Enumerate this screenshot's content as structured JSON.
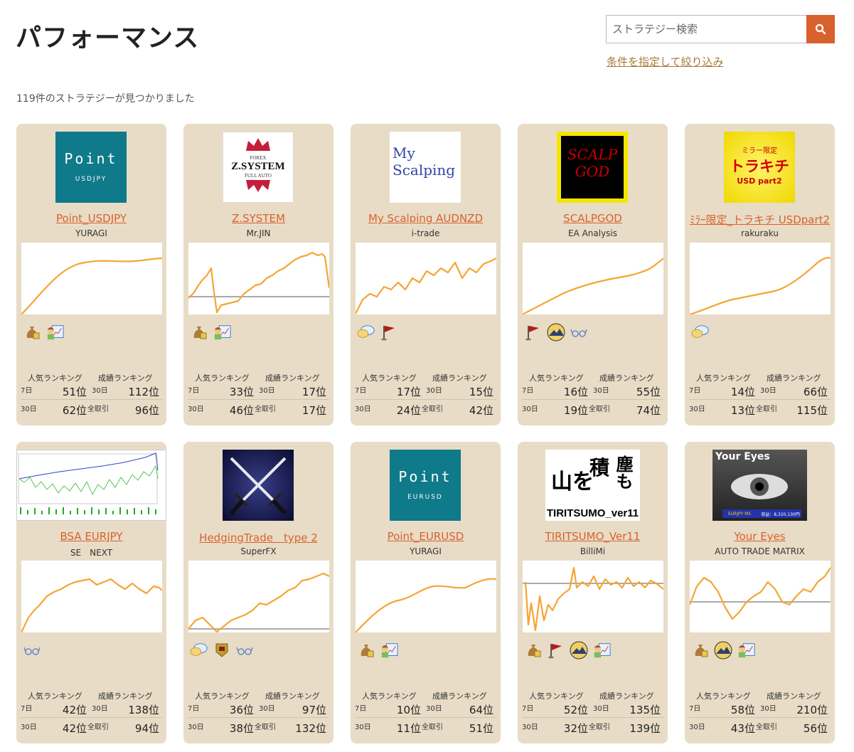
{
  "page": {
    "title": "パフォーマンス",
    "search_placeholder": "ストラテジー検索",
    "filter_link": "条件を指定して絞り込み",
    "result_count": "119件のストラテジーが見つかりました"
  },
  "labels": {
    "popular": "人気ランキング",
    "performance": "成績ランキング",
    "d7": "7日",
    "d30": "30日",
    "d30b": "30日",
    "all": "全取引"
  },
  "thumbs": {
    "t0": {
      "line1": "Point",
      "line2": "USDJPY"
    },
    "t1": {
      "l1": "FOREX",
      "l2": "Z.SYSTEM",
      "l3": "FULL AUTO"
    },
    "t2": {
      "l1": "My",
      "l2": "Scalping"
    },
    "t3": {
      "l1": "SCALP",
      "l2": "GOD"
    },
    "t4": {
      "l1": "ミラー限定",
      "l2": "トラキチ",
      "l3": "USD part2"
    },
    "t7": {
      "line1": "Point",
      "line2": "EURUSD"
    },
    "t8": {
      "l1": "山を",
      "l2": "積",
      "l3": "塵も",
      "l4": "TIRITSUMO_ver11"
    },
    "t9": {
      "l1": "Your Eyes",
      "l2": "EURJPY M5",
      "l3": "収益：8,320,130円"
    }
  },
  "cards": [
    {
      "title": "Point_USDJPY",
      "author": "YURAGI",
      "p7": "51位",
      "p30": "62位",
      "s30": "112位",
      "sall": "96位"
    },
    {
      "title": "Z.SYSTEM",
      "author": "Mr.JIN",
      "p7": "33位",
      "p30": "46位",
      "s30": "17位",
      "sall": "17位"
    },
    {
      "title": "My Scalping AUDNZD",
      "author": "i-trade",
      "p7": "17位",
      "p30": "24位",
      "s30": "15位",
      "sall": "42位"
    },
    {
      "title": "SCALPGOD",
      "author": "EA Analysis",
      "p7": "16位",
      "p30": "19位",
      "s30": "55位",
      "sall": "74位"
    },
    {
      "title": "ﾐﾗｰ限定_トラキチ USDpart2",
      "author": "rakuraku",
      "p7": "14位",
      "p30": "13位",
      "s30": "66位",
      "sall": "115位"
    },
    {
      "title": "BSA EURJPY",
      "author": "SE　NEXT",
      "p7": "42位",
      "p30": "42位",
      "s30": "138位",
      "sall": "94位"
    },
    {
      "title": "HedgingTrade　type 2",
      "author": "SuperFX",
      "p7": "36位",
      "p30": "38位",
      "s30": "97位",
      "sall": "132位"
    },
    {
      "title": "Point_EURUSD",
      "author": "YURAGI",
      "p7": "10位",
      "p30": "11位",
      "s30": "64位",
      "sall": "51位"
    },
    {
      "title": "TIRITSUMO_Ver11",
      "author": "BilliMi",
      "p7": "52位",
      "p30": "32位",
      "s30": "135位",
      "sall": "139位"
    },
    {
      "title": "Your Eyes",
      "author": "AUTO TRADE MATRIX",
      "p7": "58位",
      "p30": "43位",
      "s30": "210位",
      "sall": "56位"
    }
  ],
  "colors": {
    "accent": "#d9612e",
    "card_bg": "#e8dcc6",
    "line": "#f5a534",
    "baseline": "#aaaaaa"
  }
}
